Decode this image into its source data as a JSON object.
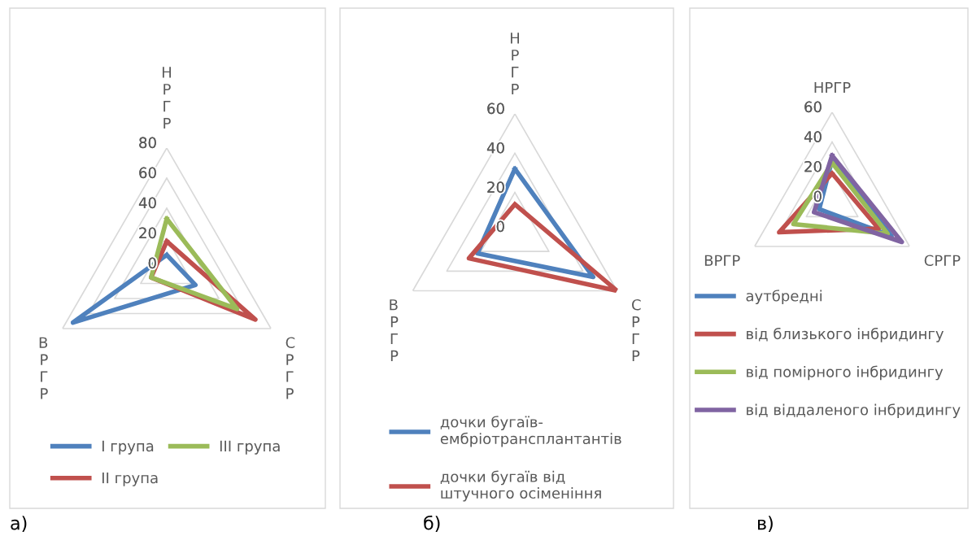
{
  "chart_data": [
    {
      "type": "radar",
      "categories": [
        "Н\nР\nГ\nР",
        "С\nР\nГ\nР",
        "В\nР\nГ\nР"
      ],
      "ylim": [
        0,
        80
      ],
      "yticks": [
        0,
        20,
        40,
        60,
        80
      ],
      "grid": true,
      "legend": "bottom",
      "annotations": [
        "а)"
      ],
      "series": [
        {
          "name": "I група",
          "color": "#4f81bd",
          "values": [
            9,
            22,
            72
          ]
        },
        {
          "name": "II група",
          "color": "#c0504d",
          "values": [
            18,
            68,
            12
          ]
        },
        {
          "name": "III група",
          "color": "#9bbb59",
          "values": [
            33,
            54,
            12
          ]
        }
      ]
    },
    {
      "type": "radar",
      "categories": [
        "Н\nР\nГ\nР",
        "С\nР\nГ\nР",
        "В\nР\nГ\nР"
      ],
      "ylim": [
        0,
        60
      ],
      "yticks": [
        0,
        20,
        40,
        60
      ],
      "grid": true,
      "legend": "bottom",
      "annotations": [
        "б)"
      ],
      "series": [
        {
          "name": "дочки бугаїв-ембріотрансплантантів",
          "color": "#4f81bd",
          "values": [
            32,
            46,
            22
          ]
        },
        {
          "name": "дочки бугаїв від штучного осіменіння",
          "color": "#c0504d",
          "values": [
            14,
            60,
            27
          ]
        }
      ]
    },
    {
      "type": "radar",
      "categories": [
        "НРГР",
        "СРГР",
        "ВРГР"
      ],
      "ylim": [
        0,
        60
      ],
      "yticks": [
        0,
        20,
        40,
        60
      ],
      "grid": true,
      "legend": "bottom",
      "annotations": [
        "в)"
      ],
      "series": [
        {
          "name": "аутбредні",
          "color": "#4f81bd",
          "values": [
            28,
            46,
            10
          ]
        },
        {
          "name": "від близького інбридингу",
          "color": "#c0504d",
          "values": [
            19,
            36,
            41
          ]
        },
        {
          "name": "від помірного інбридингу",
          "color": "#9bbb59",
          "values": [
            26,
            43,
            30
          ]
        },
        {
          "name": "від віддаленого інбридингу",
          "color": "#8064a2",
          "values": [
            31,
            54,
            14
          ]
        }
      ]
    }
  ]
}
